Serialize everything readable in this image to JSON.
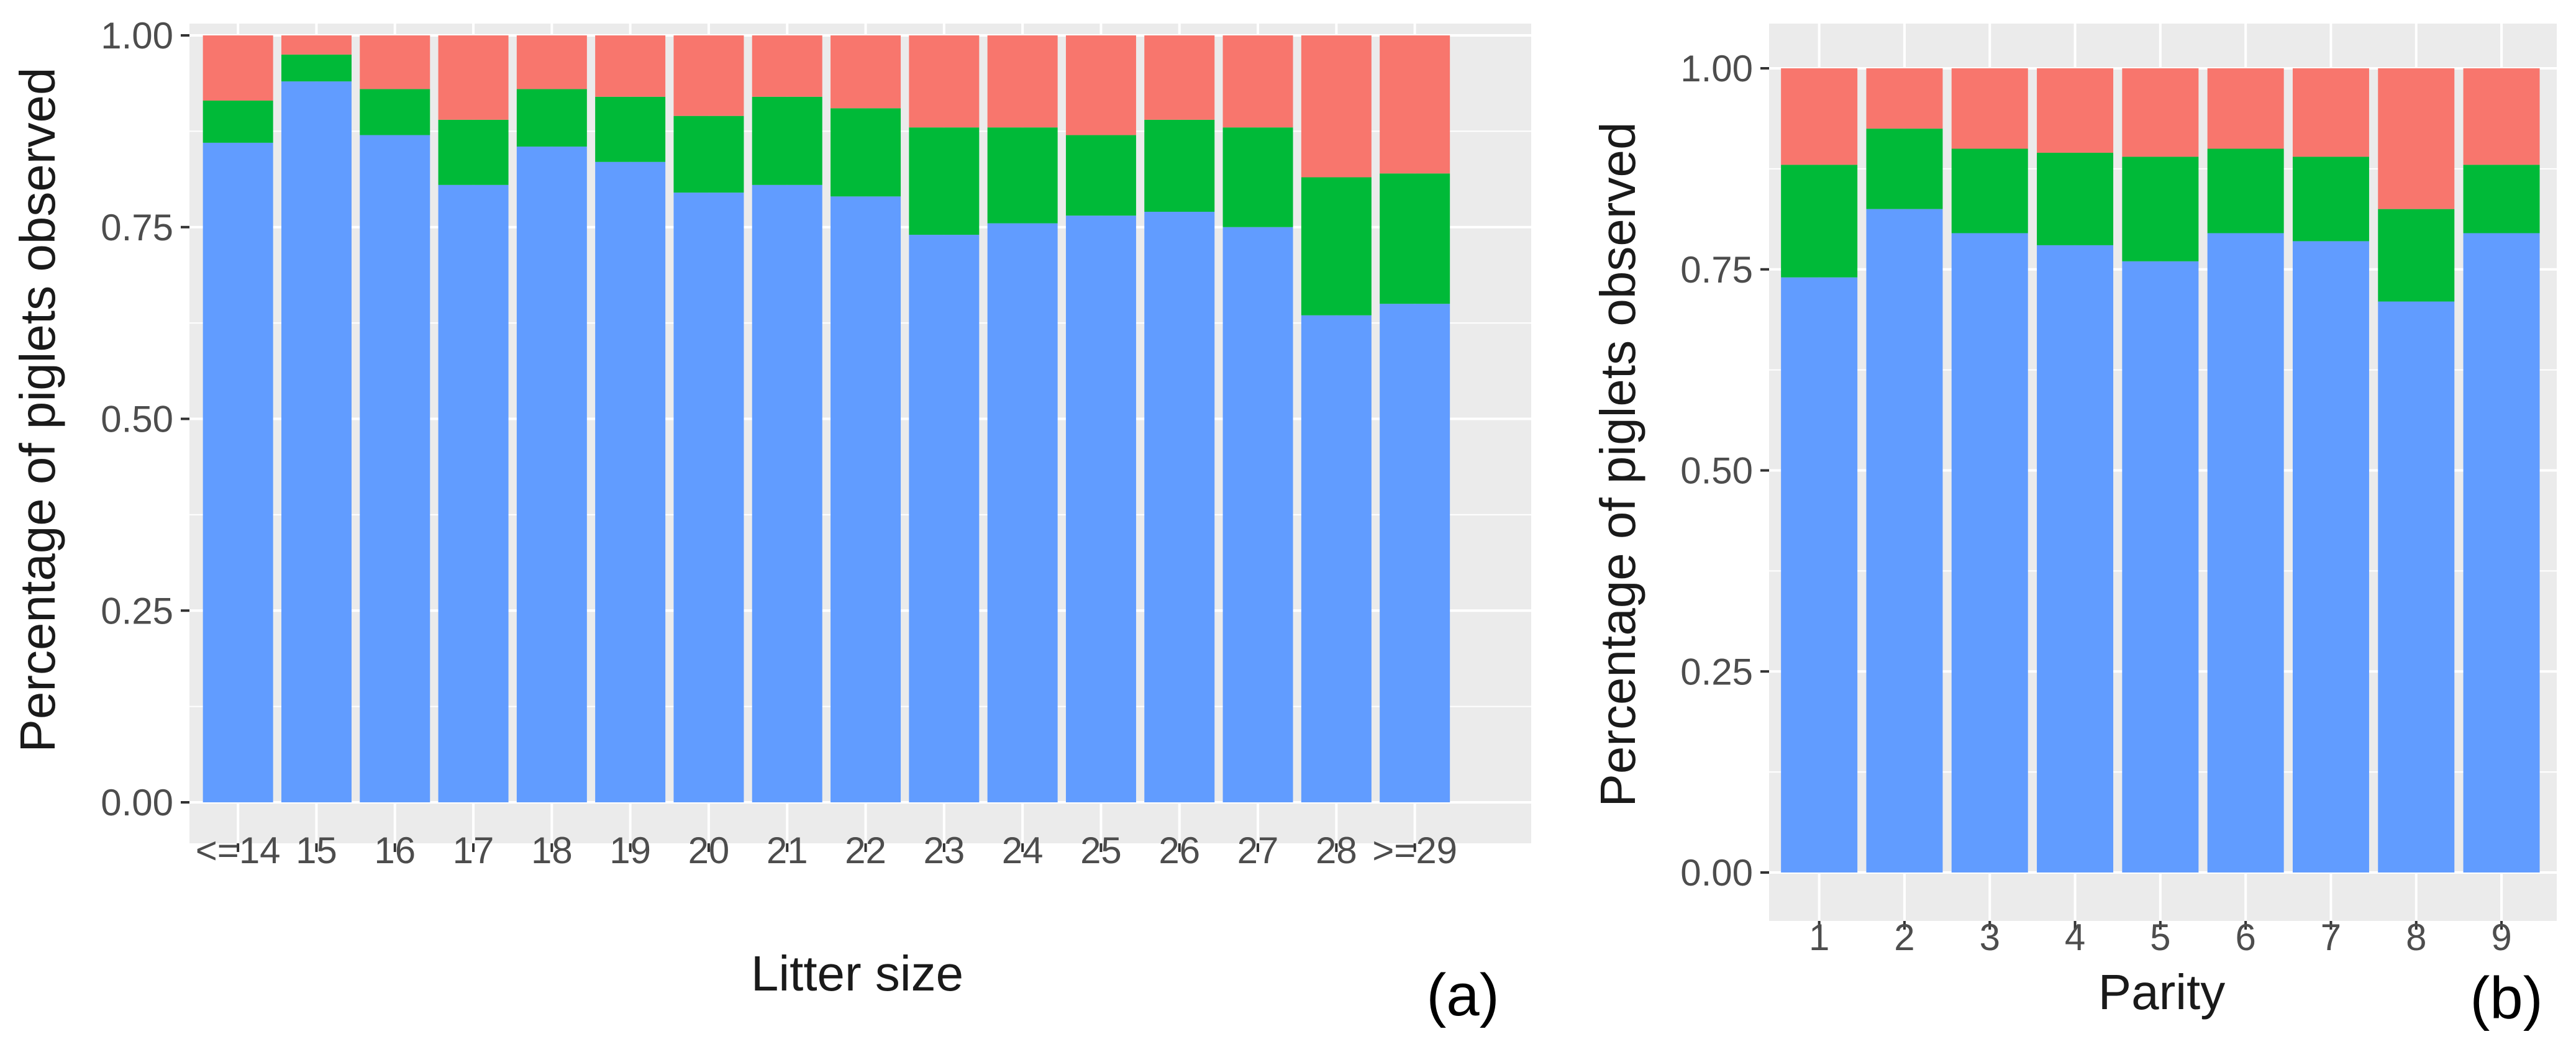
{
  "colors": {
    "panel_background": "#EBEBEB",
    "gridline": "#FFFFFF",
    "tick_mark": "#333333",
    "bottom_segment": "#619CFF",
    "middle_segment": "#00BA38",
    "top_segment": "#F8766D"
  },
  "chart_data": [
    {
      "type": "bar",
      "stacked": true,
      "panel_label": "(a)",
      "title": "",
      "xlabel": "Litter size",
      "ylabel": "Percentage of piglets observed",
      "ylim": [
        0,
        1
      ],
      "yticks": [
        "0.00",
        "0.25",
        "0.50",
        "0.75",
        "1.00"
      ],
      "categories": [
        "<=14",
        "15",
        "16",
        "17",
        "18",
        "19",
        "20",
        "21",
        "22",
        "23",
        "24",
        "25",
        "26",
        "27",
        "28",
        ">=29"
      ],
      "series": [
        {
          "name": "bottom (blue)",
          "color": "#619CFF",
          "values": [
            0.86,
            0.94,
            0.87,
            0.805,
            0.855,
            0.835,
            0.795,
            0.805,
            0.79,
            0.74,
            0.755,
            0.765,
            0.77,
            0.75,
            0.635,
            0.65
          ]
        },
        {
          "name": "middle (green)",
          "color": "#00BA38",
          "values": [
            0.055,
            0.035,
            0.06,
            0.085,
            0.075,
            0.085,
            0.1,
            0.115,
            0.115,
            0.14,
            0.125,
            0.105,
            0.12,
            0.13,
            0.18,
            0.17
          ]
        },
        {
          "name": "top (red)",
          "color": "#F8766D",
          "values": [
            0.085,
            0.025,
            0.07,
            0.11,
            0.07,
            0.08,
            0.105,
            0.08,
            0.095,
            0.12,
            0.12,
            0.13,
            0.11,
            0.12,
            0.185,
            0.18
          ]
        }
      ]
    },
    {
      "type": "bar",
      "stacked": true,
      "panel_label": "(b)",
      "title": "",
      "xlabel": "Parity",
      "ylabel": "Percentage of piglets observed",
      "ylim": [
        0,
        1
      ],
      "yticks": [
        "0.00",
        "0.25",
        "0.50",
        "0.75",
        "1.00"
      ],
      "categories": [
        "1",
        "2",
        "3",
        "4",
        "5",
        "6",
        "7",
        "8",
        "9"
      ],
      "series": [
        {
          "name": "bottom (blue)",
          "color": "#619CFF",
          "values": [
            0.74,
            0.825,
            0.795,
            0.78,
            0.76,
            0.795,
            0.785,
            0.71,
            0.795
          ]
        },
        {
          "name": "middle (green)",
          "color": "#00BA38",
          "values": [
            0.14,
            0.1,
            0.105,
            0.115,
            0.13,
            0.105,
            0.105,
            0.115,
            0.085
          ]
        },
        {
          "name": "top (red)",
          "color": "#F8766D",
          "values": [
            0.12,
            0.075,
            0.1,
            0.105,
            0.11,
            0.1,
            0.11,
            0.175,
            0.12
          ]
        }
      ]
    }
  ]
}
